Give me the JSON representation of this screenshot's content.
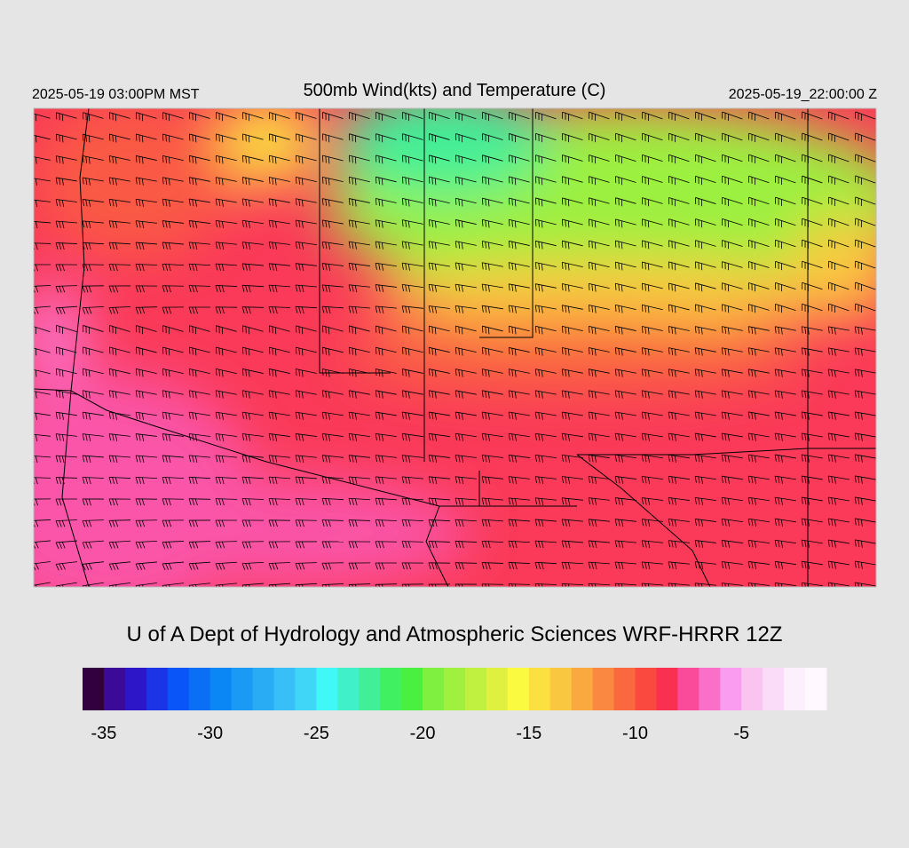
{
  "header": {
    "valid_local": "2025-05-19 03:00PM MST",
    "title": "500mb Wind(kts) and Temperature (C)",
    "valid_utc": "2025-05-19_22:00:00 Z"
  },
  "credit": "U of A Dept of Hydrology and Atmospheric Sciences WRF-HRRR 12Z",
  "colorbar": {
    "range": [
      -36,
      -1
    ],
    "ticks": [
      -35,
      -30,
      -25,
      -20,
      -15,
      -10,
      -5
    ],
    "colors": [
      "#33003f",
      "#3b0a96",
      "#2c16c8",
      "#1a34e6",
      "#0a55f7",
      "#0a6ff5",
      "#0a86f5",
      "#1a9af5",
      "#2aacf5",
      "#38bff7",
      "#3fd6f7",
      "#40f8f8",
      "#40f0c8",
      "#40ef98",
      "#40f060",
      "#4af040",
      "#80f040",
      "#a0f040",
      "#c0f040",
      "#dff040",
      "#fafa40",
      "#fae040",
      "#fac840",
      "#faa840",
      "#fa8840",
      "#fa6840",
      "#fa4a40",
      "#fa3050",
      "#fa4a9a",
      "#fa70c8",
      "#fa9cf0",
      "#fac4f0",
      "#fadcf8",
      "#fcf0fc",
      "#fff8ff"
    ]
  }
}
